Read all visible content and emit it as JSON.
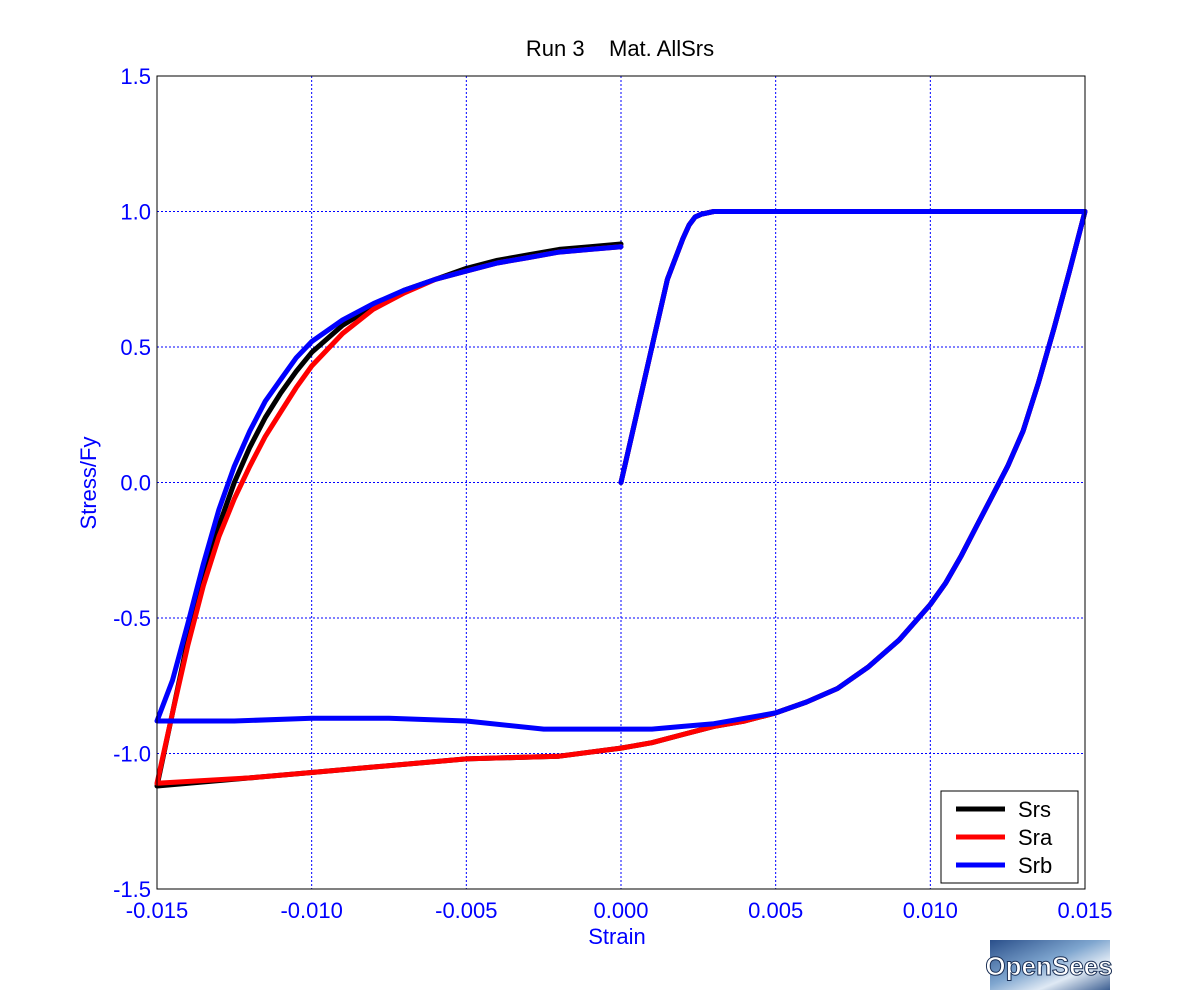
{
  "chart_data": {
    "type": "line",
    "title": "Run 3    Mat. AllSrs",
    "xlabel": "Strain",
    "ylabel": "Stress/Fy",
    "xlim": [
      -0.015,
      0.015
    ],
    "ylim": [
      -1.5,
      1.5
    ],
    "xticks": [
      "-0.015",
      "-0.010",
      "-0.005",
      "0.000",
      "0.005",
      "0.010",
      "0.015"
    ],
    "yticks": [
      "1.5",
      "1.0",
      "0.5",
      "0.0",
      "-0.5",
      "-1.0",
      "-1.5"
    ],
    "grid": true,
    "legend_position": "bottom-right",
    "series": [
      {
        "name": "Srs",
        "color": "#000000",
        "x": [
          0,
          0.0005,
          0.001,
          0.0015,
          0.002,
          0.0022,
          0.0024,
          0.0026,
          0.003,
          0.0035,
          0.005,
          0.008,
          0.01,
          0.012,
          0.015,
          0.0145,
          0.014,
          0.0135,
          0.013,
          0.0125,
          0.012,
          0.0115,
          0.011,
          0.0105,
          0.01,
          0.009,
          0.008,
          0.007,
          0.006,
          0.005,
          0.004,
          0.003,
          0.002,
          0.001,
          0,
          -0.002,
          -0.005,
          -0.008,
          -0.01,
          -0.012,
          -0.015,
          -0.0145,
          -0.014,
          -0.0135,
          -0.013,
          -0.0125,
          -0.012,
          -0.0115,
          -0.011,
          -0.0105,
          -0.01,
          -0.009,
          -0.008,
          -0.007,
          -0.006,
          -0.005,
          -0.004,
          -0.003,
          -0.002,
          -0.001,
          0
        ],
        "y": [
          0,
          0.25,
          0.5,
          0.75,
          0.9,
          0.95,
          0.98,
          0.99,
          1.0,
          1.0,
          1.0,
          1.0,
          1.0,
          1.0,
          1.0,
          0.78,
          0.57,
          0.37,
          0.19,
          0.06,
          -0.05,
          -0.16,
          -0.27,
          -0.37,
          -0.45,
          -0.58,
          -0.68,
          -0.76,
          -0.81,
          -0.85,
          -0.88,
          -0.9,
          -0.93,
          -0.96,
          -0.98,
          -1.01,
          -1.02,
          -1.05,
          -1.07,
          -1.09,
          -1.12,
          -0.85,
          -0.58,
          -0.35,
          -0.16,
          0.0,
          0.13,
          0.24,
          0.33,
          0.41,
          0.48,
          0.58,
          0.65,
          0.71,
          0.75,
          0.79,
          0.82,
          0.84,
          0.86,
          0.87,
          0.88
        ]
      },
      {
        "name": "Sra",
        "color": "#ff0000",
        "x": [
          0,
          0.0005,
          0.001,
          0.0015,
          0.002,
          0.0022,
          0.0024,
          0.0026,
          0.003,
          0.0035,
          0.005,
          0.008,
          0.01,
          0.012,
          0.015,
          0.0145,
          0.014,
          0.0135,
          0.013,
          0.0125,
          0.012,
          0.0115,
          0.011,
          0.0105,
          0.01,
          0.009,
          0.008,
          0.007,
          0.006,
          0.005,
          0.004,
          0.003,
          0.002,
          0.001,
          0,
          -0.002,
          -0.005,
          -0.008,
          -0.01,
          -0.012,
          -0.015,
          -0.0145,
          -0.014,
          -0.0135,
          -0.013,
          -0.0125,
          -0.012,
          -0.0115,
          -0.011,
          -0.0105,
          -0.01,
          -0.009,
          -0.008,
          -0.007,
          -0.006,
          -0.005,
          -0.004,
          -0.003,
          -0.002,
          -0.001,
          0
        ],
        "y": [
          0,
          0.25,
          0.5,
          0.75,
          0.9,
          0.95,
          0.98,
          0.99,
          1.0,
          1.0,
          1.0,
          1.0,
          1.0,
          1.0,
          1.0,
          0.78,
          0.57,
          0.37,
          0.19,
          0.06,
          -0.05,
          -0.16,
          -0.27,
          -0.37,
          -0.45,
          -0.58,
          -0.68,
          -0.76,
          -0.81,
          -0.85,
          -0.88,
          -0.9,
          -0.93,
          -0.96,
          -0.98,
          -1.01,
          -1.02,
          -1.05,
          -1.07,
          -1.09,
          -1.11,
          -0.85,
          -0.6,
          -0.38,
          -0.2,
          -0.06,
          0.06,
          0.17,
          0.26,
          0.35,
          0.43,
          0.55,
          0.64,
          0.7,
          0.75,
          0.78,
          0.81,
          0.83,
          0.85,
          0.86,
          0.87
        ]
      },
      {
        "name": "Srb",
        "color": "#0000ff",
        "x": [
          0,
          0.0005,
          0.001,
          0.0015,
          0.002,
          0.0022,
          0.0024,
          0.0026,
          0.003,
          0.0035,
          0.005,
          0.008,
          0.01,
          0.012,
          0.015,
          0.0145,
          0.014,
          0.0135,
          0.013,
          0.0125,
          0.012,
          0.0115,
          0.011,
          0.0105,
          0.01,
          0.009,
          0.008,
          0.007,
          0.006,
          0.005,
          0.004,
          0.003,
          0.002,
          0.001,
          0,
          -0.0025,
          -0.005,
          -0.0075,
          -0.01,
          -0.0125,
          -0.015,
          -0.015,
          -0.0145,
          -0.014,
          -0.0135,
          -0.013,
          -0.0125,
          -0.012,
          -0.0115,
          -0.011,
          -0.0105,
          -0.01,
          -0.009,
          -0.008,
          -0.007,
          -0.006,
          -0.005,
          -0.004,
          -0.003,
          -0.002,
          -0.001,
          0
        ],
        "y": [
          0,
          0.25,
          0.5,
          0.75,
          0.9,
          0.95,
          0.98,
          0.99,
          1.0,
          1.0,
          1.0,
          1.0,
          1.0,
          1.0,
          1.0,
          0.78,
          0.57,
          0.37,
          0.19,
          0.06,
          -0.05,
          -0.16,
          -0.27,
          -0.37,
          -0.45,
          -0.58,
          -0.68,
          -0.76,
          -0.81,
          -0.85,
          -0.87,
          -0.89,
          -0.9,
          -0.91,
          -0.91,
          -0.91,
          -0.88,
          -0.87,
          -0.87,
          -0.88,
          -0.88,
          -0.88,
          -0.73,
          -0.52,
          -0.3,
          -0.1,
          0.06,
          0.19,
          0.3,
          0.38,
          0.46,
          0.52,
          0.6,
          0.66,
          0.71,
          0.75,
          0.78,
          0.81,
          0.83,
          0.85,
          0.86,
          0.87
        ]
      }
    ]
  },
  "logo": {
    "text": "OpenSees"
  }
}
